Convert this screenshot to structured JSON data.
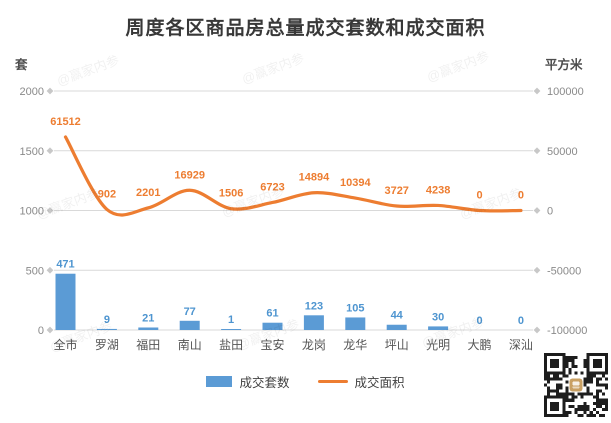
{
  "title": "周度各区商品房总量成交套数和成交面积",
  "watermark": "@赢家内参",
  "legend": {
    "bar_label": "成交套数",
    "line_label": "成交面积"
  },
  "chart_data": {
    "type": "bar+line combo",
    "title": "周度各区商品房总量成交套数和成交面积",
    "categories": [
      "全市",
      "罗湖",
      "福田",
      "南山",
      "盐田",
      "宝安",
      "龙岗",
      "龙华",
      "坪山",
      "光明",
      "大鹏",
      "深汕"
    ],
    "series": [
      {
        "name": "成交套数",
        "type": "bar",
        "axis": "left",
        "color": "#5b9bd5",
        "values": [
          471,
          9,
          21,
          77,
          1,
          61,
          123,
          105,
          44,
          30,
          0,
          0
        ]
      },
      {
        "name": "成交面积",
        "type": "line",
        "axis": "right",
        "color": "#ed7d31",
        "values": [
          61512,
          902,
          2201,
          16929,
          1506,
          6723,
          14894,
          10394,
          3727,
          4238,
          0,
          0
        ]
      }
    ],
    "left_axis": {
      "label": "套",
      "range": [
        0,
        2000
      ],
      "tick_step": 500,
      "ticks": [
        "2000",
        "1500",
        "1000",
        "500",
        "0"
      ]
    },
    "right_axis": {
      "label": "平方米",
      "range": [
        -100000,
        100000
      ],
      "tick_step": 50000,
      "ticks": [
        "100000",
        "50000",
        "0",
        "-50000",
        "-100000"
      ]
    },
    "grid": true,
    "legend_position": "bottom",
    "smooth_line": true
  }
}
